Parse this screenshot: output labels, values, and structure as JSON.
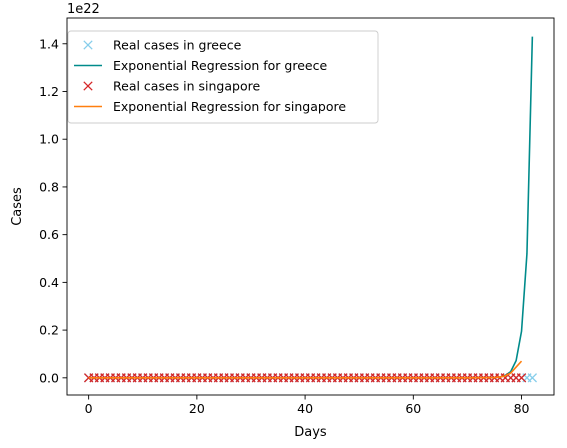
{
  "chart_data": {
    "type": "line",
    "title": "",
    "xlabel": "Days",
    "ylabel": "Cases",
    "offset_text": "1e22",
    "xlim": [
      -4,
      86
    ],
    "ylim": [
      -0.072,
      1.508
    ],
    "xticks": [
      0,
      20,
      40,
      60,
      80
    ],
    "xtick_labels": [
      "0",
      "20",
      "40",
      "60",
      "80"
    ],
    "yticks": [
      0.0,
      0.2,
      0.4,
      0.6,
      0.8,
      1.0,
      1.2,
      1.4
    ],
    "ytick_labels": [
      "0.0",
      "0.2",
      "0.4",
      "0.6",
      "0.8",
      "1.0",
      "1.2",
      "1.4"
    ],
    "grid": false,
    "legend_position": "upper-left",
    "series": [
      {
        "name": "Real cases in greece",
        "kind": "markers",
        "marker": "x",
        "color": "#87ceeb",
        "x": [
          0,
          1,
          2,
          3,
          4,
          5,
          6,
          7,
          8,
          9,
          10,
          11,
          12,
          13,
          14,
          15,
          16,
          17,
          18,
          19,
          20,
          21,
          22,
          23,
          24,
          25,
          26,
          27,
          28,
          29,
          30,
          31,
          32,
          33,
          34,
          35,
          36,
          37,
          38,
          39,
          40,
          41,
          42,
          43,
          44,
          45,
          46,
          47,
          48,
          49,
          50,
          51,
          52,
          53,
          54,
          55,
          56,
          57,
          58,
          59,
          60,
          61,
          62,
          63,
          64,
          65,
          66,
          67,
          68,
          69,
          70,
          71,
          72,
          73,
          74,
          75,
          76,
          77,
          78,
          79,
          80,
          81,
          82
        ],
        "y": [
          0,
          0,
          0,
          0,
          0,
          0,
          0,
          0,
          0,
          0,
          0,
          0,
          0,
          0,
          0,
          0,
          0,
          0,
          0,
          0,
          0,
          0,
          0,
          0,
          0,
          0,
          0,
          0,
          0,
          0,
          0,
          0,
          0,
          0,
          0,
          0,
          0,
          0,
          0,
          0,
          0,
          0,
          0,
          0,
          0,
          0,
          0,
          0,
          0,
          0,
          0,
          0,
          0,
          0,
          0,
          0,
          0,
          0,
          0,
          0,
          0,
          0,
          0,
          0,
          0,
          0,
          0,
          0,
          0,
          0,
          0,
          0,
          0,
          0,
          0,
          0,
          0,
          0,
          0,
          0,
          0,
          0,
          0
        ]
      },
      {
        "name": "Exponential Regression for greece",
        "kind": "line",
        "color": "#008b8b",
        "x": [
          0,
          10,
          20,
          30,
          40,
          50,
          60,
          70,
          75,
          76,
          77,
          78,
          79,
          80,
          81,
          82
        ],
        "y": [
          0,
          0,
          0,
          0,
          0,
          0,
          0,
          0,
          0.001,
          0.003,
          0.01,
          0.026,
          0.072,
          0.195,
          0.52,
          1.43
        ]
      },
      {
        "name": "Real cases in singapore",
        "kind": "markers",
        "marker": "x",
        "color": "#d62728",
        "x": [
          0,
          1,
          2,
          3,
          4,
          5,
          6,
          7,
          8,
          9,
          10,
          11,
          12,
          13,
          14,
          15,
          16,
          17,
          18,
          19,
          20,
          21,
          22,
          23,
          24,
          25,
          26,
          27,
          28,
          29,
          30,
          31,
          32,
          33,
          34,
          35,
          36,
          37,
          38,
          39,
          40,
          41,
          42,
          43,
          44,
          45,
          46,
          47,
          48,
          49,
          50,
          51,
          52,
          53,
          54,
          55,
          56,
          57,
          58,
          59,
          60,
          61,
          62,
          63,
          64,
          65,
          66,
          67,
          68,
          69,
          70,
          71,
          72,
          73,
          74,
          75,
          76,
          77,
          78,
          79,
          80
        ],
        "y": [
          0,
          0,
          0,
          0,
          0,
          0,
          0,
          0,
          0,
          0,
          0,
          0,
          0,
          0,
          0,
          0,
          0,
          0,
          0,
          0,
          0,
          0,
          0,
          0,
          0,
          0,
          0,
          0,
          0,
          0,
          0,
          0,
          0,
          0,
          0,
          0,
          0,
          0,
          0,
          0,
          0,
          0,
          0,
          0,
          0,
          0,
          0,
          0,
          0,
          0,
          0,
          0,
          0,
          0,
          0,
          0,
          0,
          0,
          0,
          0,
          0,
          0,
          0,
          0,
          0,
          0,
          0,
          0,
          0,
          0,
          0,
          0,
          0,
          0,
          0,
          0,
          0,
          0,
          0,
          0,
          0
        ]
      },
      {
        "name": "Exponential Regression for singapore",
        "kind": "line",
        "color": "#ff7f0e",
        "x": [
          0,
          10,
          20,
          30,
          40,
          50,
          60,
          70,
          75,
          76,
          77,
          78,
          79,
          80
        ],
        "y": [
          0,
          0,
          0,
          0,
          0,
          0,
          0,
          0,
          0.001,
          0.003,
          0.008,
          0.02,
          0.045,
          0.07
        ]
      }
    ]
  }
}
